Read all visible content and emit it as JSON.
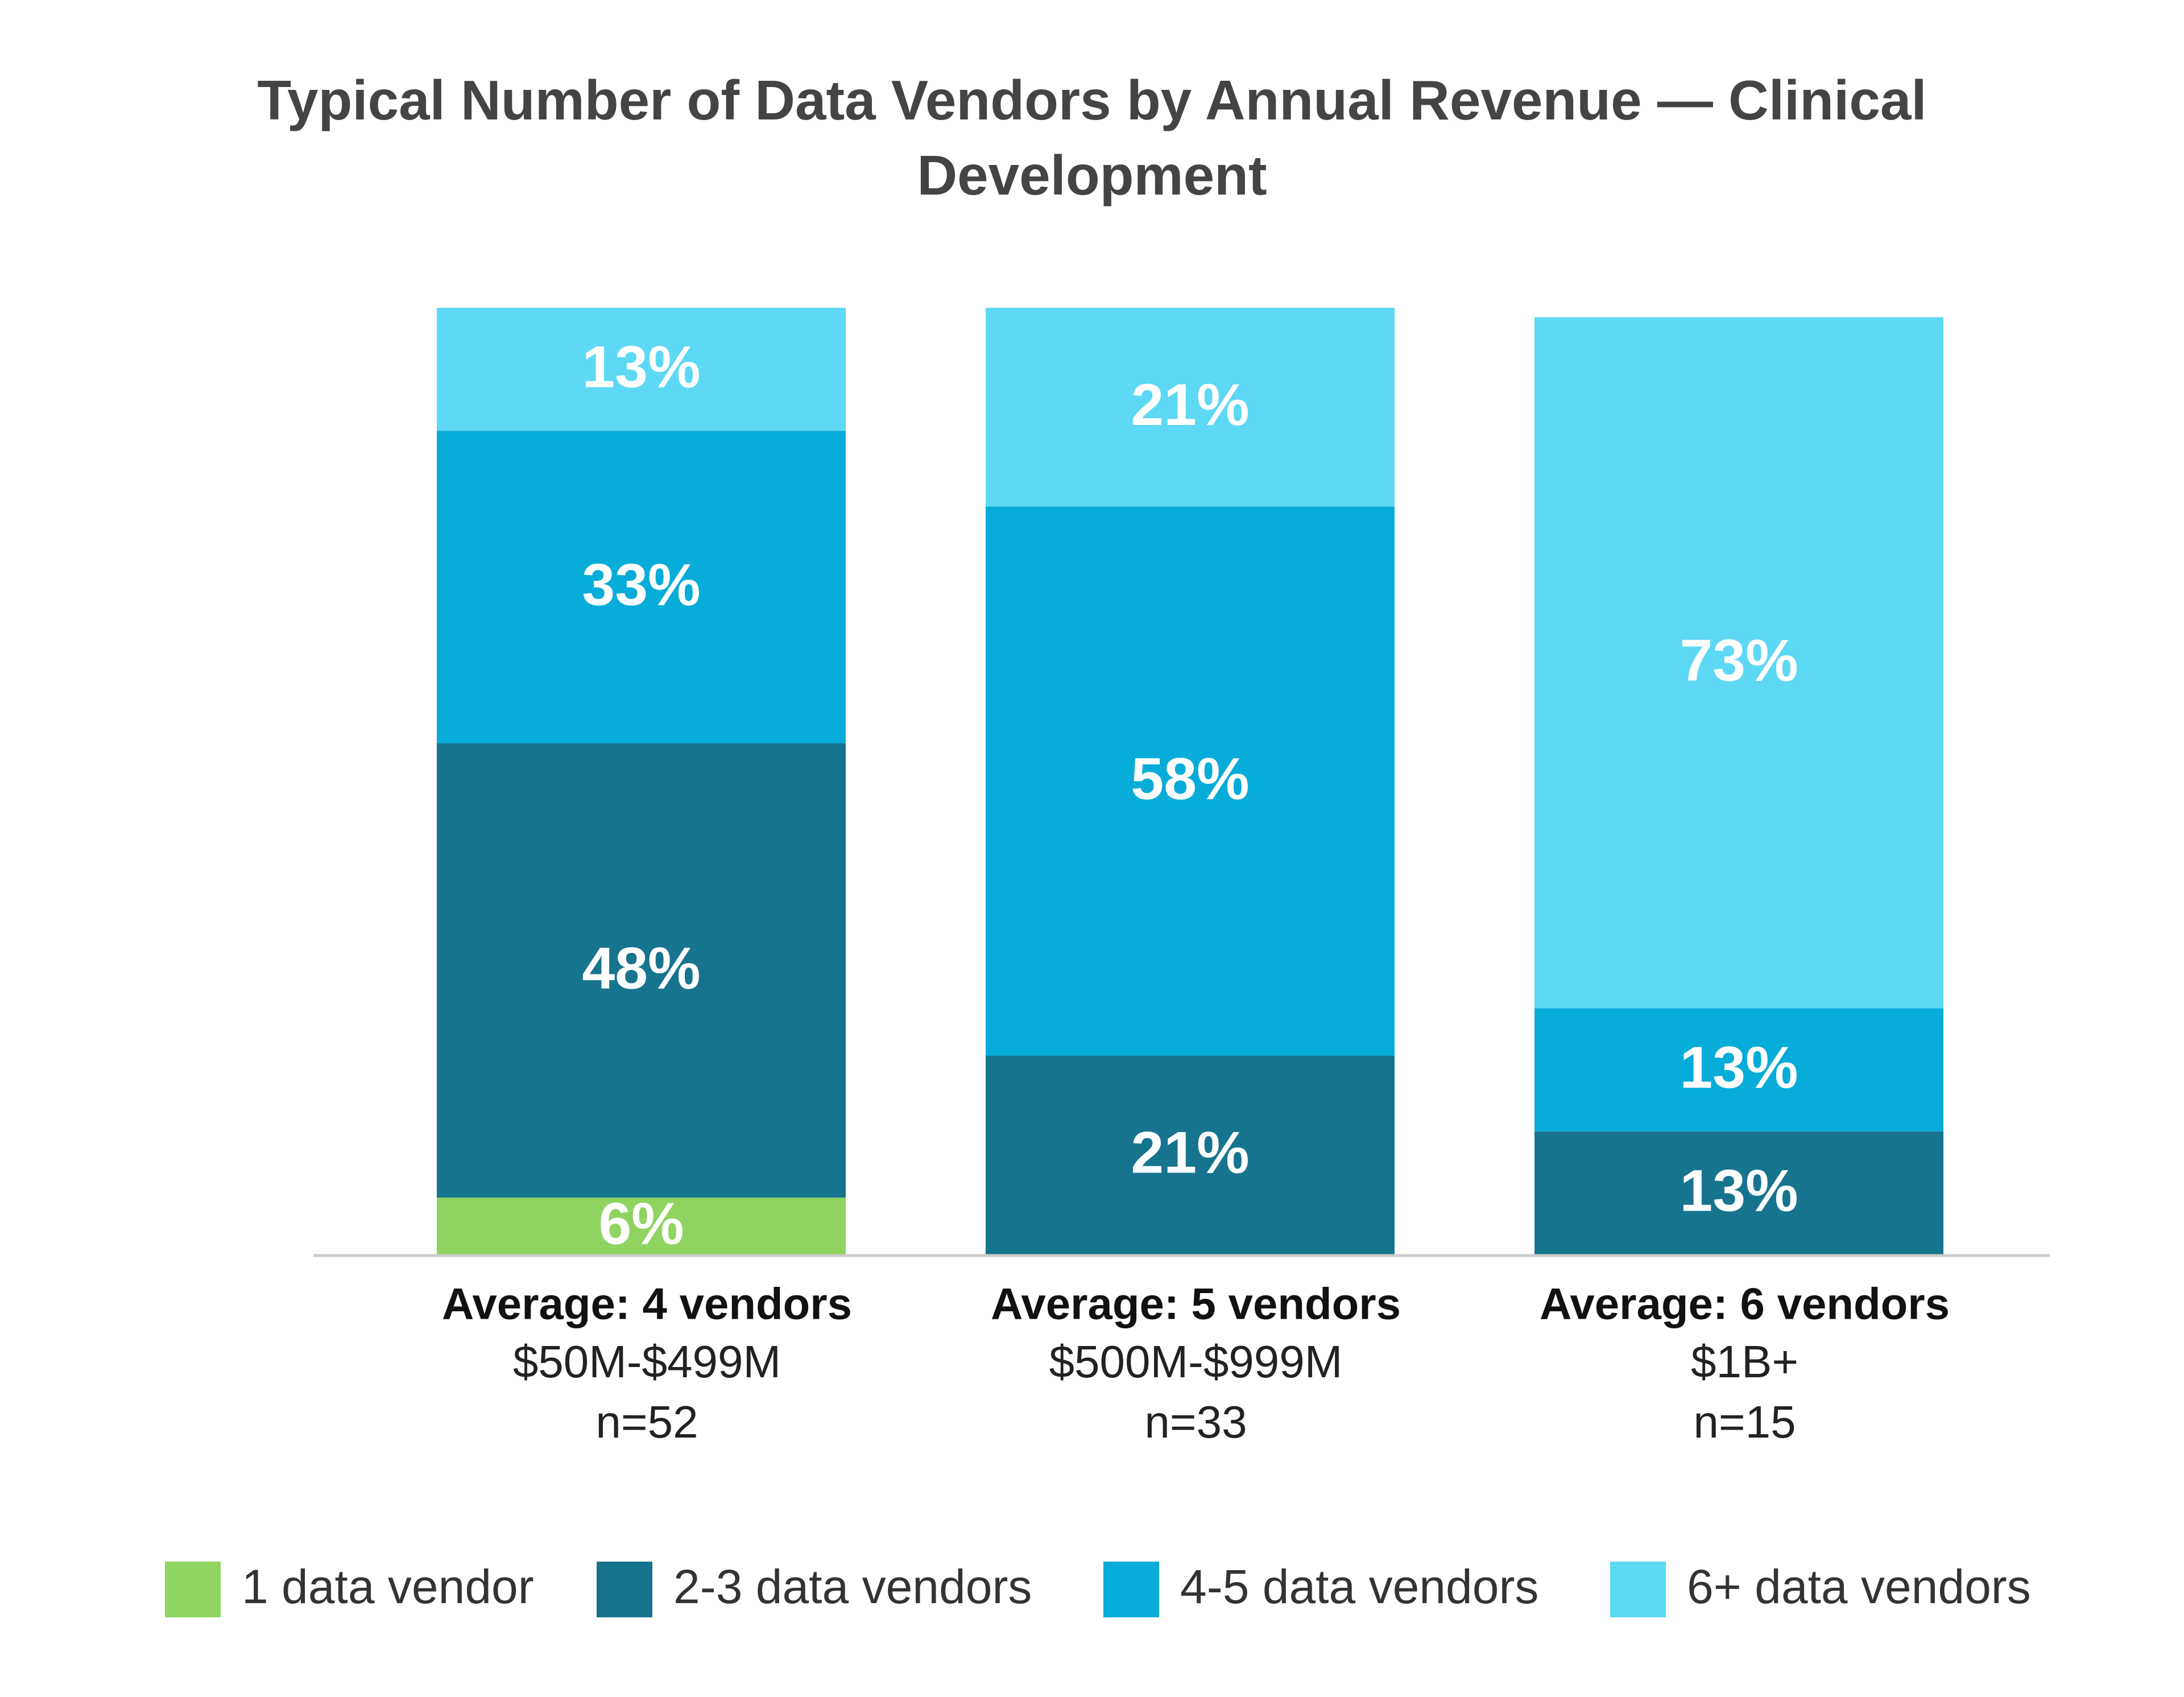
{
  "chart_data": {
    "type": "stacked_bar",
    "title": "Typical Number of Data Vendors by Annual Revenue — Clinical Development",
    "categories": [
      "$50M-$499M",
      "$500M-$999M",
      "$1B+"
    ],
    "averages": [
      "Average: 4 vendors",
      "Average: 5 vendors",
      "Average: 6 vendors"
    ],
    "sample_sizes": [
      "n=52",
      "n=33",
      "n=15"
    ],
    "series": [
      {
        "name": "1 data vendor",
        "color": "#8fd460",
        "values": [
          6,
          null,
          null
        ],
        "value_labels": [
          "6%",
          null,
          null
        ]
      },
      {
        "name": "2-3 data vendors",
        "color": "#17748f",
        "values": [
          48,
          21,
          13
        ],
        "value_labels": [
          "48%",
          "21%",
          "13%"
        ]
      },
      {
        "name": "4-5 data vendors",
        "color": "#07acd9",
        "values": [
          33,
          58,
          13
        ],
        "value_labels": [
          "33%",
          "58%",
          "13%"
        ]
      },
      {
        "name": "6+ data vendors",
        "color": "#5dd8f5",
        "values": [
          13,
          21,
          73
        ],
        "value_labels": [
          "13%",
          "21%",
          "73%"
        ]
      }
    ],
    "legend": "bottom"
  }
}
